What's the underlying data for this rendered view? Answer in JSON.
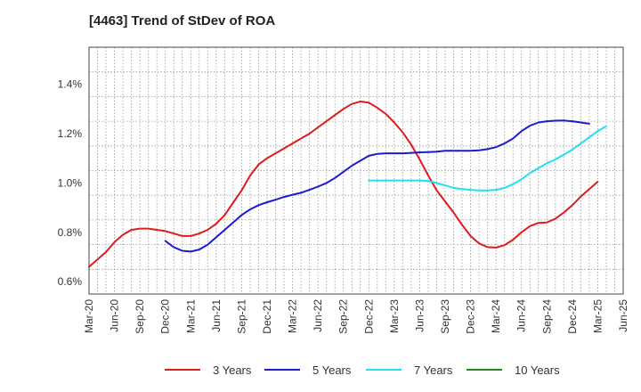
{
  "title": "[4463]  Trend of StDev of ROA",
  "chart_data": {
    "type": "line",
    "title": "[4463]  Trend of StDev of ROA",
    "xlabel": "",
    "ylabel": "",
    "x_ticks": [
      "Mar-20",
      "Jun-20",
      "Sep-20",
      "Dec-20",
      "Mar-21",
      "Jun-21",
      "Sep-21",
      "Dec-21",
      "Mar-22",
      "Jun-22",
      "Sep-22",
      "Dec-22",
      "Mar-23",
      "Jun-23",
      "Sep-23",
      "Dec-23",
      "Mar-24",
      "Jun-24",
      "Sep-24",
      "Dec-24",
      "Mar-25",
      "Jun-25"
    ],
    "xlim": [
      "Mar-20",
      "Jun-25"
    ],
    "y_ticks": [
      "0.6%",
      "0.8%",
      "1.0%",
      "1.2%",
      "1.4%"
    ],
    "ylim": [
      0.55,
      1.55
    ],
    "y_unit": "%",
    "grid": true,
    "legend_position": "bottom",
    "series": [
      {
        "name": "3 Years",
        "color": "#dd1c1c",
        "start": "Mar-20",
        "values": [
          0.66,
          0.69,
          0.72,
          0.76,
          0.79,
          0.81,
          0.815,
          0.815,
          0.81,
          0.805,
          0.795,
          0.785,
          0.785,
          0.795,
          0.81,
          0.835,
          0.87,
          0.92,
          0.97,
          1.03,
          1.075,
          1.1,
          1.12,
          1.14,
          1.16,
          1.18,
          1.2,
          1.225,
          1.25,
          1.275,
          1.3,
          1.32,
          1.33,
          1.325,
          1.305,
          1.28,
          1.245,
          1.205,
          1.155,
          1.095,
          1.03,
          0.97,
          0.925,
          0.88,
          0.83,
          0.785,
          0.755,
          0.74,
          0.738,
          0.748,
          0.77,
          0.8,
          0.825,
          0.838,
          0.84,
          0.855,
          0.88,
          0.91,
          0.945,
          0.975,
          1.005
        ]
      },
      {
        "name": "5 Years",
        "color": "#1c1ccc",
        "start": "Dec-20",
        "values": [
          0.765,
          0.74,
          0.725,
          0.722,
          0.73,
          0.75,
          0.78,
          0.81,
          0.84,
          0.87,
          0.893,
          0.91,
          0.922,
          0.932,
          0.943,
          0.952,
          0.96,
          0.972,
          0.985,
          1.0,
          1.02,
          1.045,
          1.07,
          1.09,
          1.11,
          1.118,
          1.12,
          1.12,
          1.12,
          1.122,
          1.124,
          1.125,
          1.127,
          1.13,
          1.13,
          1.13,
          1.13,
          1.132,
          1.137,
          1.145,
          1.16,
          1.18,
          1.21,
          1.232,
          1.245,
          1.25,
          1.252,
          1.253,
          1.25,
          1.245,
          1.24
        ]
      },
      {
        "name": "7 Years",
        "color": "#22e0f0",
        "start": "Dec-22",
        "values": [
          1.01,
          1.01,
          1.01,
          1.01,
          1.01,
          1.01,
          1.01,
          1.008,
          1.0,
          0.99,
          0.98,
          0.975,
          0.972,
          0.97,
          0.97,
          0.972,
          0.98,
          0.995,
          1.015,
          1.04,
          1.06,
          1.08,
          1.095,
          1.115,
          1.135,
          1.16,
          1.185,
          1.21,
          1.23
        ]
      },
      {
        "name": "10 Years",
        "color": "#1f8a1f",
        "start": "",
        "values": []
      }
    ]
  }
}
